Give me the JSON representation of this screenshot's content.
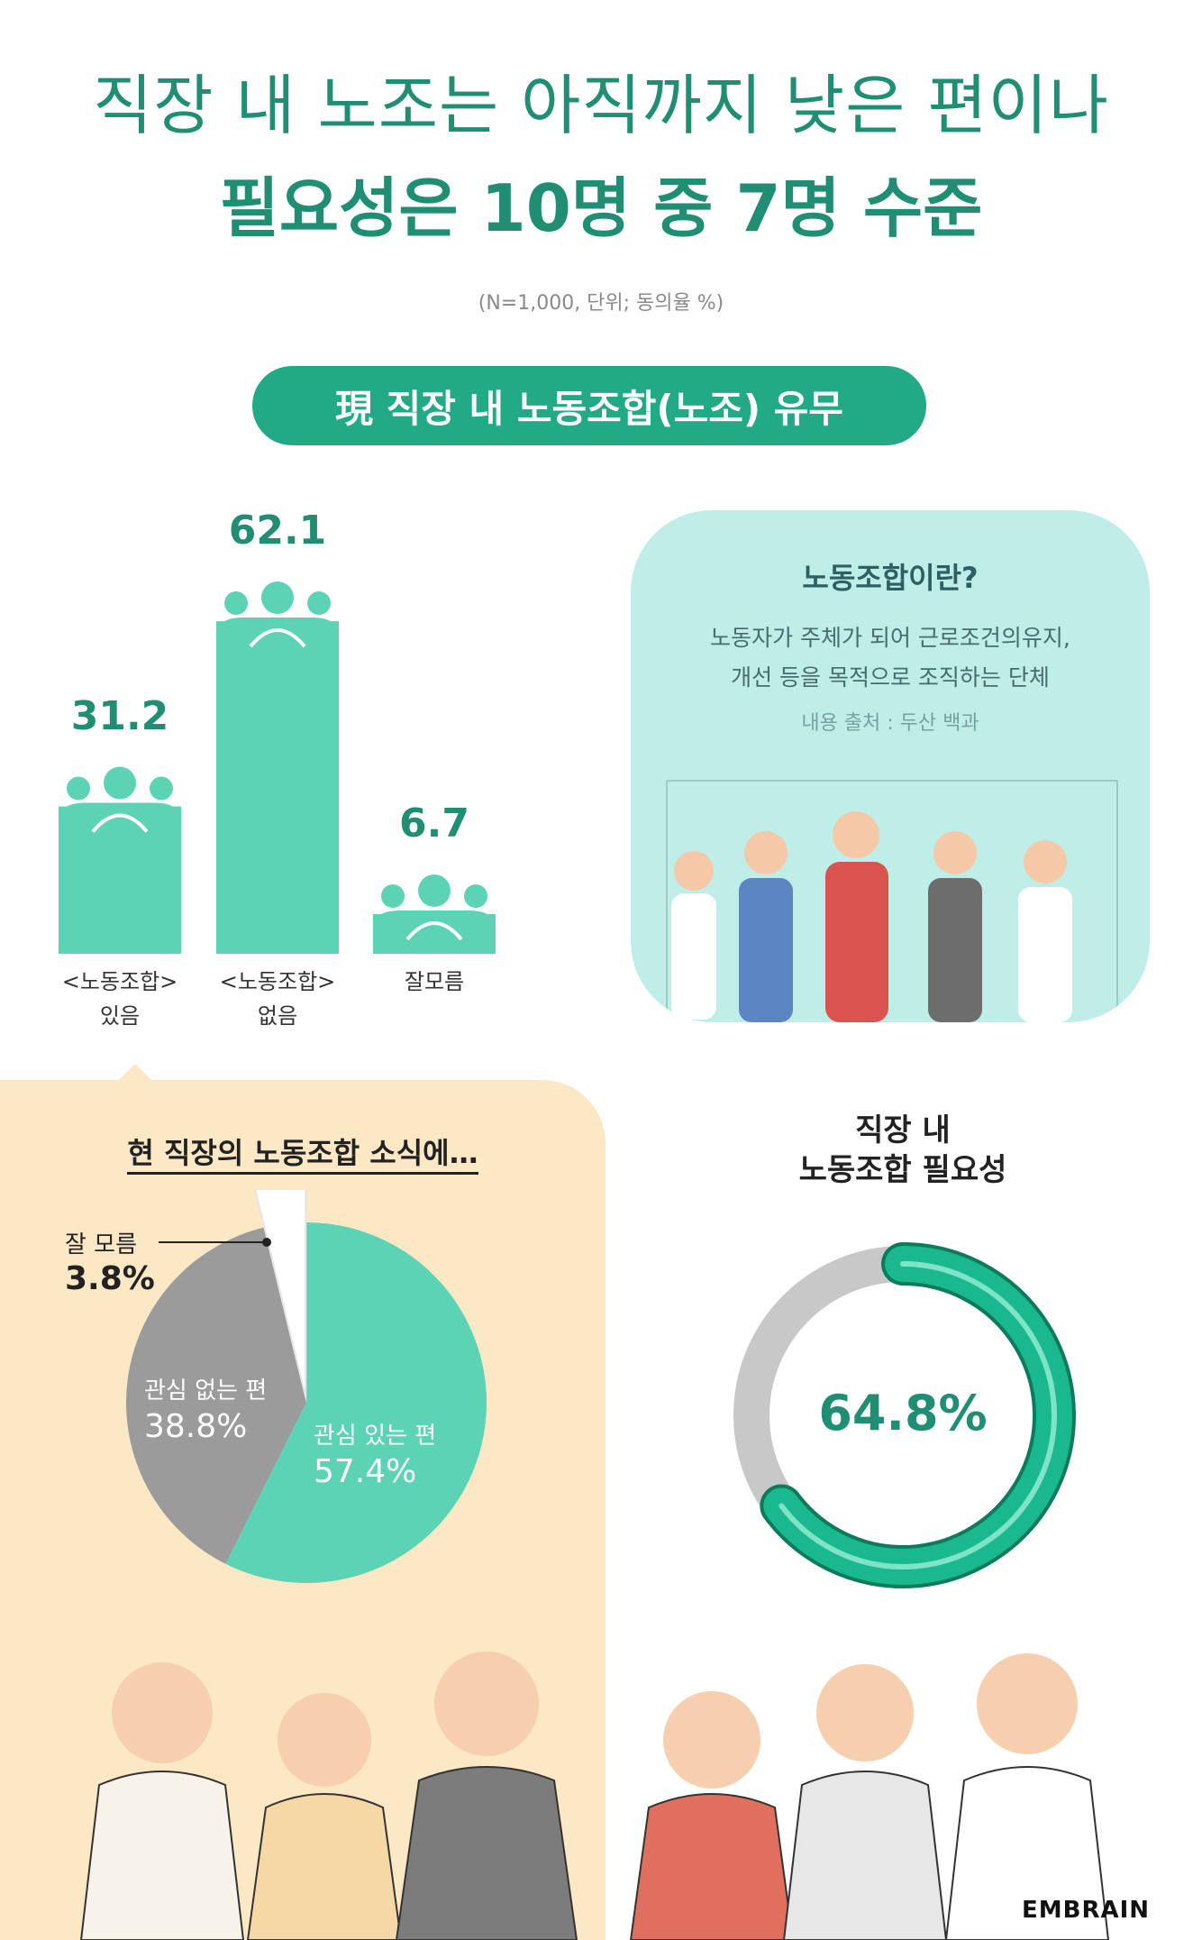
{
  "header": {
    "title_line1": "직장 내 노조는 아직까지 낮은 편이나",
    "title_line2": "필요성은 10명 중 7명 수준",
    "note": "(N=1,000, 단위; 동의율 %)"
  },
  "section_pill": "現 직장 내 노동조합(노조) 유무",
  "info": {
    "title": "노동조합이란?",
    "body_line1": "노동자가 주체가 되어 근로조건의유지,",
    "body_line2": "개선 등을 목적으로 조직하는 단체",
    "source": "내용 출처 : 두산 백과"
  },
  "chart_data": [
    {
      "type": "bar",
      "categories": [
        "<노동조합> 있음",
        "<노동조합> 없음",
        "잘모름"
      ],
      "category_lines": [
        [
          "<노동조합>",
          "있음"
        ],
        [
          "<노동조합>",
          "없음"
        ],
        [
          "잘모름"
        ]
      ],
      "values": [
        31.2,
        62.1,
        6.7
      ],
      "value_labels": [
        "31.2",
        "62.1",
        "6.7"
      ],
      "color": "#5dd3b6"
    },
    {
      "type": "pie",
      "title": "현 직장의 노동조합 소식에…",
      "slices": [
        {
          "label": "관심 있는 편",
          "value": 57.4,
          "value_label": "57.4%",
          "color": "#5dd3b6"
        },
        {
          "label": "관심 없는 편",
          "value": 38.8,
          "value_label": "38.8%",
          "color": "#9b9b9b"
        },
        {
          "label": "잘 모름",
          "value": 3.8,
          "value_label": "3.8%",
          "color": "#ffffff"
        }
      ]
    },
    {
      "type": "pie",
      "title_line1": "직장 내",
      "title_line2": "노동조합 필요성",
      "value": 64.8,
      "value_label": "64.8%",
      "colors": {
        "fill": "#1ab88e",
        "track": "#c8c8c8"
      }
    }
  ],
  "brand": "EMBRAIN"
}
